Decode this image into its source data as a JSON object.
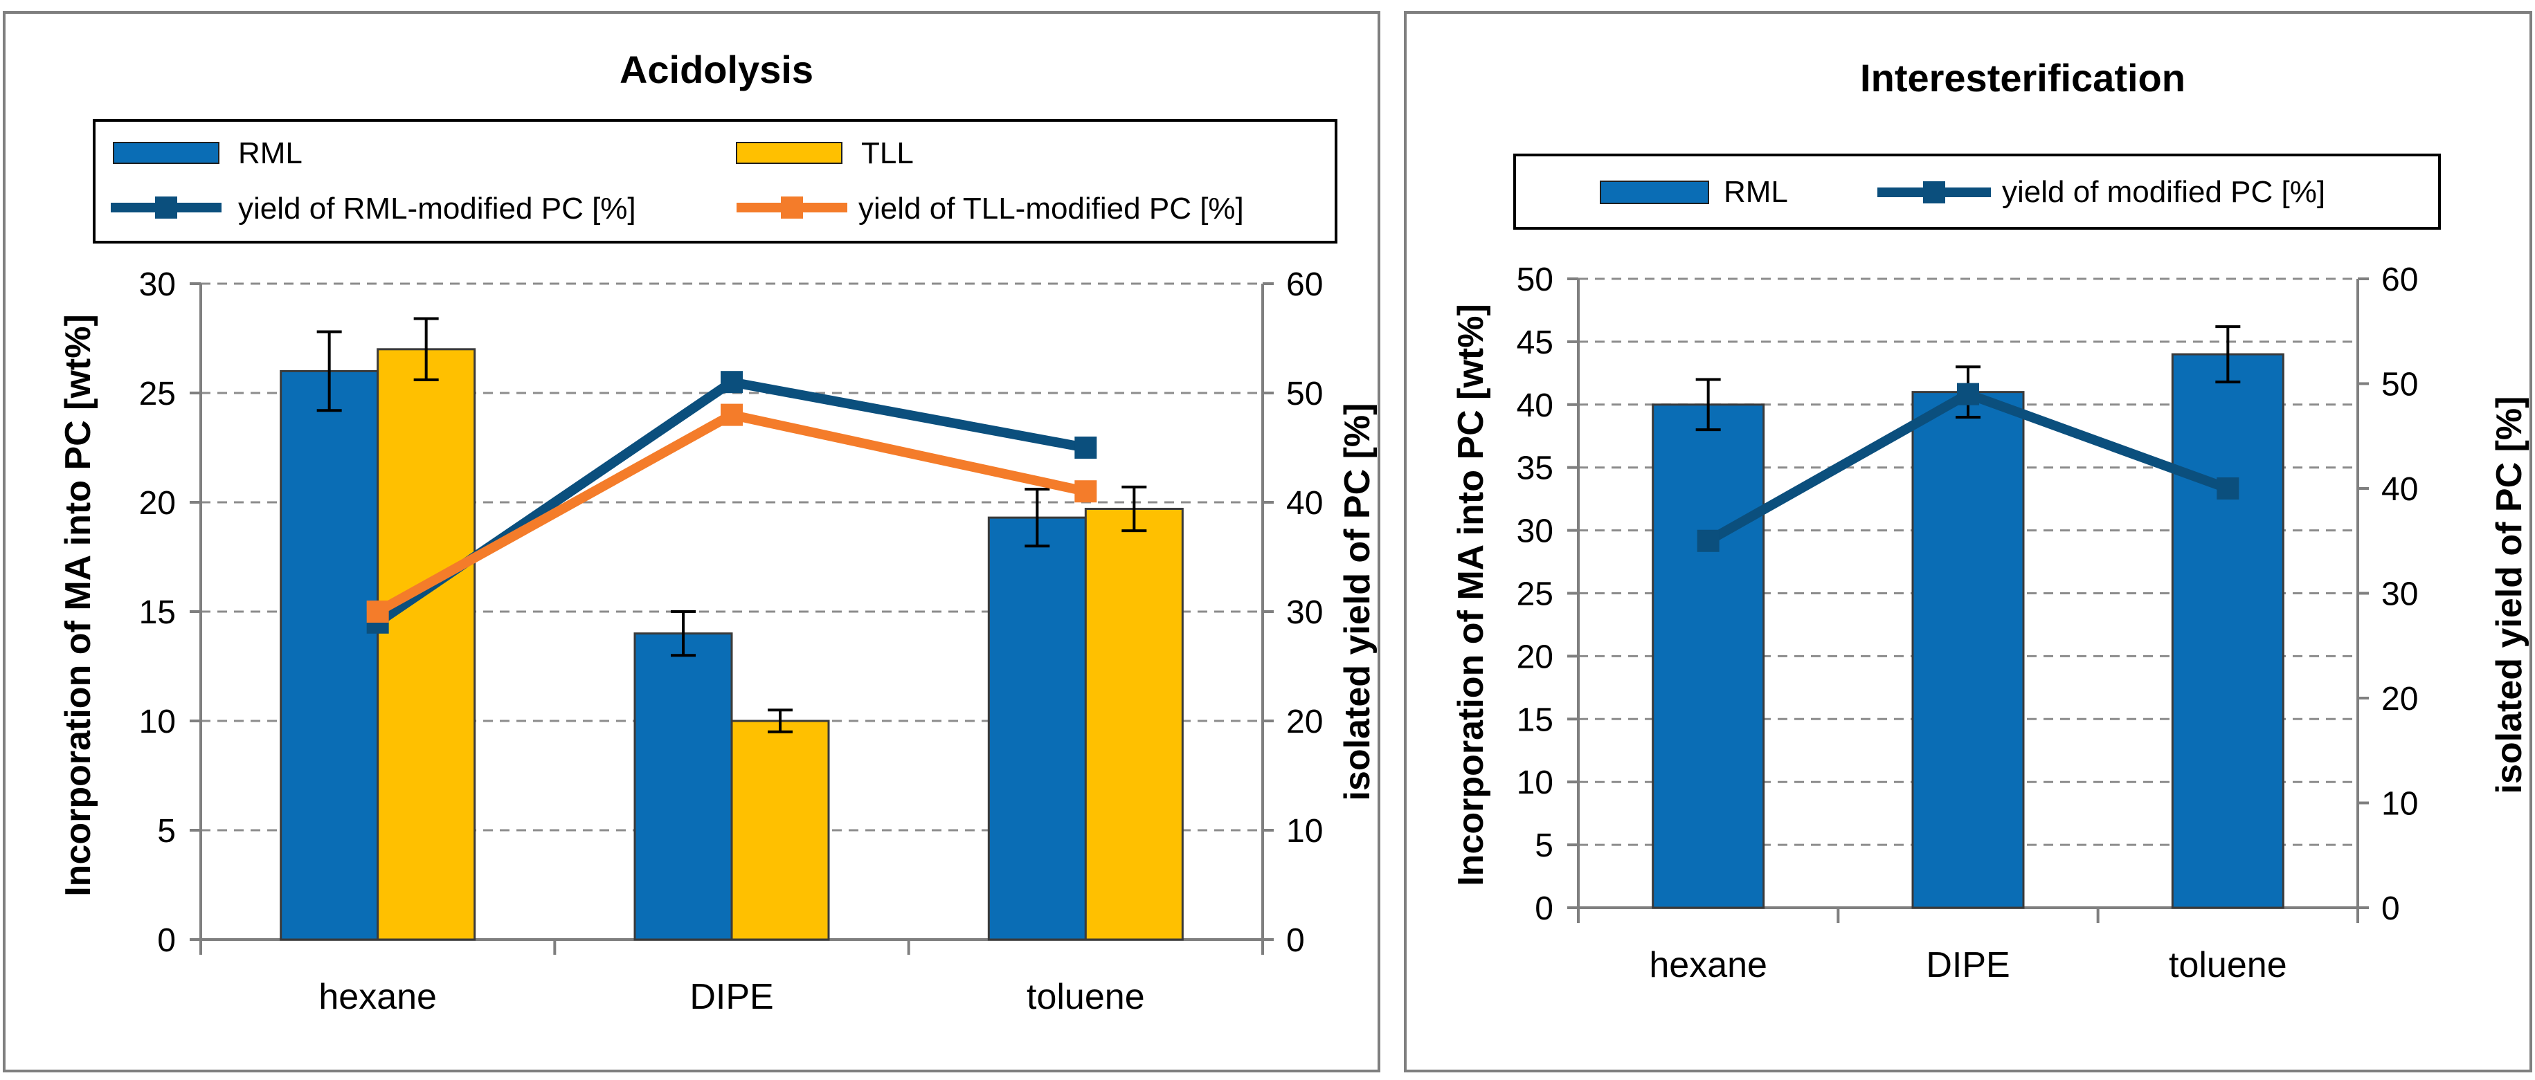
{
  "chart_data": [
    {
      "type": "bar+line",
      "title": "Acidolysis",
      "categories": [
        "hexane",
        "DIPE",
        "toluene"
      ],
      "ylabel": "Incorporation of  MA into PC [wt%]",
      "y2label": "isolated yield of PC [%]",
      "ylim": [
        0,
        30
      ],
      "y2lim": [
        0,
        60
      ],
      "yticks": [
        0,
        5,
        10,
        15,
        20,
        25,
        30
      ],
      "y2ticks": [
        0,
        10,
        20,
        30,
        40,
        50,
        60
      ],
      "bar_series": [
        {
          "name": "RML",
          "color": "#0a6db5",
          "values": [
            26.0,
            14.0,
            19.3
          ],
          "errors": [
            1.8,
            1.0,
            1.3
          ]
        },
        {
          "name": "TLL",
          "color": "#ffc000",
          "values": [
            27.0,
            10.0,
            19.7
          ],
          "errors": [
            1.4,
            0.5,
            1.0
          ]
        }
      ],
      "line_series": [
        {
          "name": "yield of RML-modified PC [%]",
          "color": "#0b4f7d",
          "values": [
            29,
            51,
            45
          ]
        },
        {
          "name": "yield of TLL-modified PC [%]",
          "color": "#f47c2a",
          "values": [
            30,
            48,
            41
          ]
        }
      ],
      "legend": [
        "RML",
        "TLL",
        "yield of RML-modified PC [%]",
        "yield of TLL-modified PC [%]"
      ],
      "grid": true
    },
    {
      "type": "bar+line",
      "title": "Interesterification",
      "categories": [
        "hexane",
        "DIPE",
        "toluene"
      ],
      "ylabel": "Incorporation of MA into PC [wt%]",
      "y2label": "isolated yield of PC [%]",
      "ylim": [
        0,
        50
      ],
      "y2lim": [
        0,
        60
      ],
      "yticks": [
        0,
        5,
        10,
        15,
        20,
        25,
        30,
        35,
        40,
        45,
        50
      ],
      "y2ticks": [
        0,
        10,
        20,
        30,
        40,
        50,
        60
      ],
      "bar_series": [
        {
          "name": "RML",
          "color": "#0a6db5",
          "values": [
            40.0,
            41.0,
            44.0
          ],
          "errors": [
            2.0,
            2.0,
            2.2
          ]
        }
      ],
      "line_series": [
        {
          "name": "yield of modified PC [%]",
          "color": "#0b4f7d",
          "values": [
            35,
            49,
            40
          ]
        }
      ],
      "legend": [
        "RML",
        "yield of modified PC [%]"
      ],
      "grid": true
    }
  ]
}
